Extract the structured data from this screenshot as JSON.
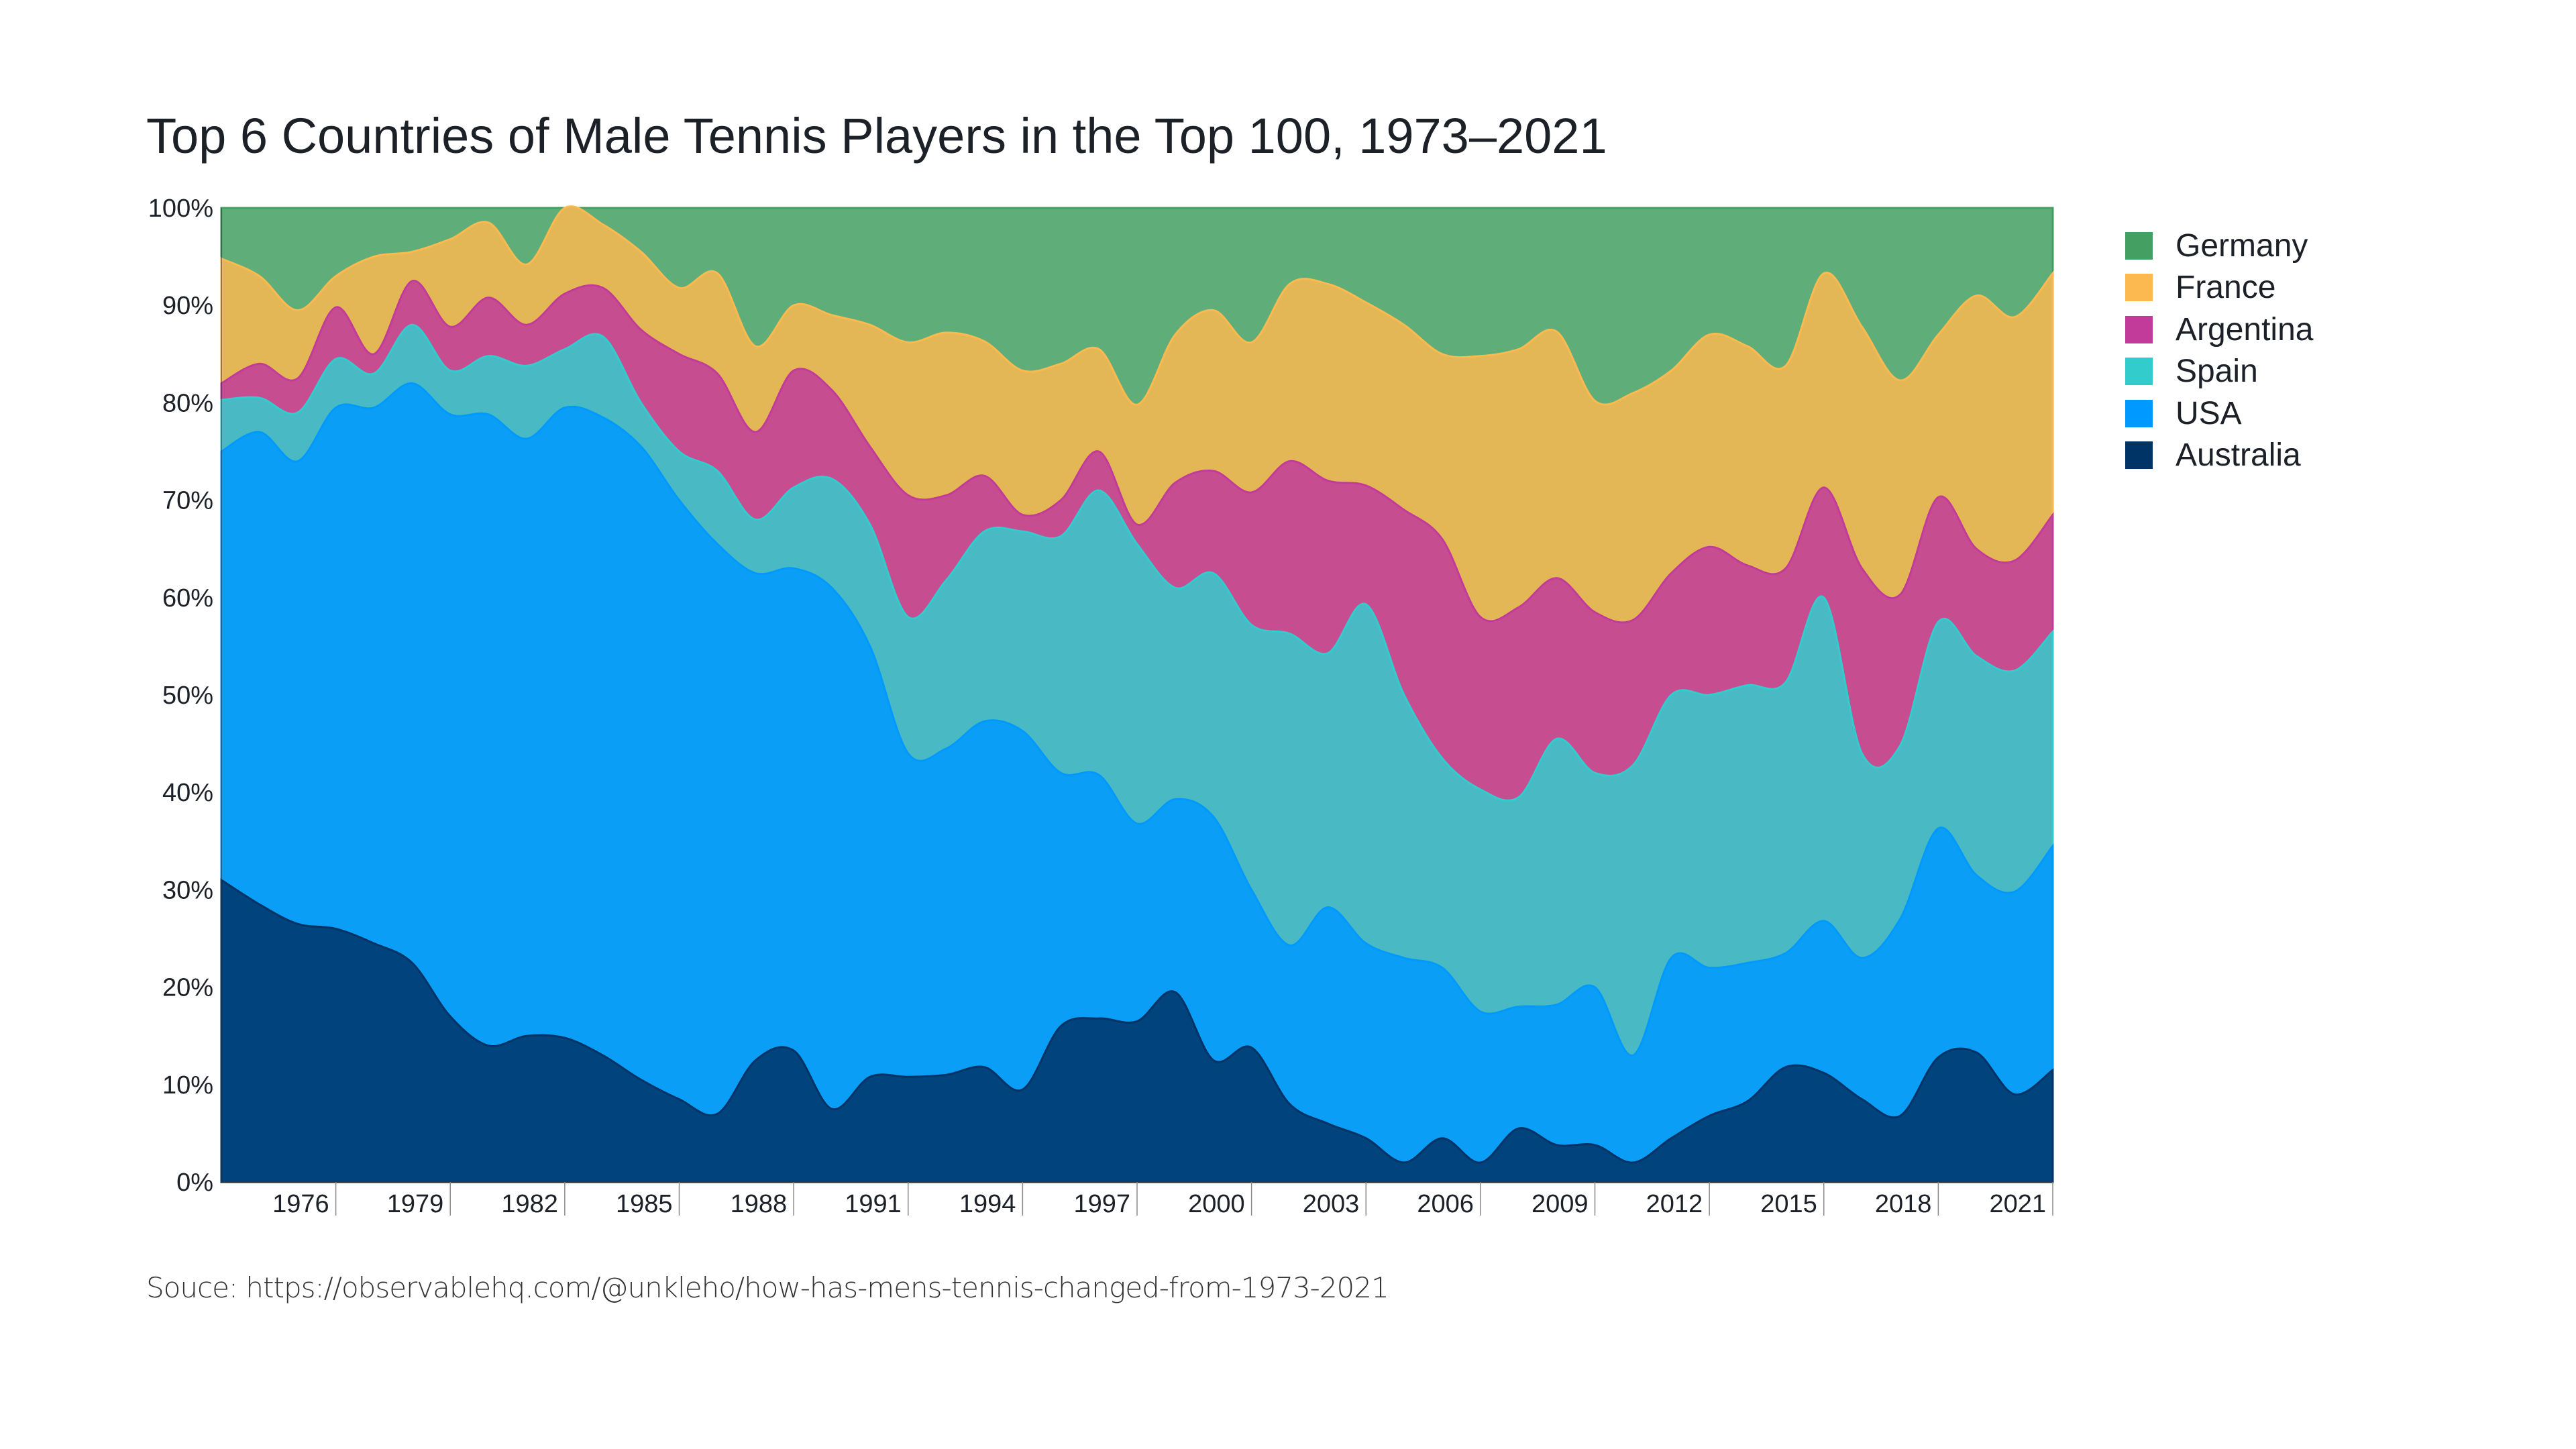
{
  "chart_data": {
    "type": "area",
    "stacked": true,
    "normalized": true,
    "title": "Top 6 Countries of Male Tennis Players in the Top 100, 1973–2021",
    "source": "Souce: https://observablehq.com/@unkleho/how-has-mens-tennis-changed-from-1973-2021",
    "xlabel": "",
    "ylabel": "",
    "ylim": [
      0,
      100
    ],
    "y_ticks": [
      "0%",
      "10%",
      "20%",
      "30%",
      "40%",
      "50%",
      "60%",
      "70%",
      "80%",
      "90%",
      "100%"
    ],
    "x_ticks": [
      "1976",
      "1979",
      "1982",
      "1985",
      "1988",
      "1991",
      "1994",
      "1997",
      "2000",
      "2003",
      "2006",
      "2009",
      "2012",
      "2015",
      "2018",
      "2021"
    ],
    "legend_position": "right",
    "grid": false,
    "x": [
      1973,
      1974,
      1975,
      1976,
      1977,
      1978,
      1979,
      1980,
      1981,
      1982,
      1983,
      1984,
      1985,
      1986,
      1987,
      1988,
      1989,
      1990,
      1991,
      1992,
      1993,
      1994,
      1995,
      1996,
      1997,
      1998,
      1999,
      2000,
      2001,
      2002,
      2003,
      2004,
      2005,
      2006,
      2007,
      2008,
      2009,
      2010,
      2011,
      2012,
      2013,
      2014,
      2015,
      2016,
      2017,
      2018,
      2019,
      2020,
      2021
    ],
    "series": [
      {
        "name": "Australia",
        "color": "#003366",
        "values": [
          31,
          28.5,
          26.5,
          26,
          24.5,
          22.5,
          17,
          14,
          15,
          14.8,
          13,
          10.5,
          8.5,
          7,
          12.5,
          13.5,
          7.5,
          10.8,
          10.8,
          11,
          11.8,
          9.5,
          16,
          16.8,
          16.5,
          19.5,
          12.5,
          13.8,
          8,
          6,
          4.5,
          2,
          4.5,
          2,
          5.5,
          3.8,
          3.8,
          2,
          4.5,
          6.8,
          8.3,
          11.8,
          11.2,
          8.5,
          6.8,
          12.8,
          13.3,
          9,
          11.5
        ]
      },
      {
        "name": "USA",
        "color": "#0099ff",
        "values": [
          44,
          48.5,
          47.5,
          53.5,
          55,
          59.5,
          61.8,
          64.8,
          61.3,
          64.7,
          65.5,
          65,
          61.5,
          58.5,
          50,
          49.5,
          53.5,
          44.2,
          33.2,
          33.5,
          35.5,
          36.8,
          26,
          25,
          20.3,
          19.8,
          25,
          16.2,
          16.3,
          22.2,
          20,
          21,
          17.5,
          15.5,
          12.5,
          14.4,
          16.2,
          11,
          18.5,
          15.2,
          14.2,
          11.7,
          15.6,
          14.5,
          20.2,
          23.5,
          18.2,
          20.8,
          23
        ]
      },
      {
        "name": "Spain",
        "color": "#33cccc",
        "values": [
          5.3,
          3.5,
          5,
          5,
          3.5,
          6,
          4.5,
          6,
          7.5,
          6,
          8.3,
          4.5,
          5,
          7.5,
          5.5,
          8.3,
          11.2,
          12.5,
          14,
          17.3,
          19.5,
          20.5,
          24.3,
          29.2,
          28.7,
          21.7,
          25,
          27.2,
          32,
          26.1,
          34.8,
          27,
          21.5,
          22.8,
          21.5,
          27.3,
          22,
          29.8,
          27,
          28,
          28.5,
          27.8,
          33.2,
          21,
          17.8,
          21.2,
          22.5,
          22.7,
          22
        ]
      },
      {
        "name": "Argentina",
        "color": "#c23b9b",
        "values": [
          1.7,
          3.5,
          3.5,
          5.3,
          2,
          4.5,
          4.5,
          6,
          4.2,
          5.7,
          5,
          7.5,
          10,
          10,
          9,
          12,
          9.1,
          8,
          12.5,
          8.7,
          5.7,
          1.7,
          3.7,
          4,
          2,
          10.8,
          10.5,
          13.6,
          17.7,
          17.7,
          12.2,
          19,
          22.5,
          17.7,
          19.5,
          16.5,
          16.5,
          14.9,
          12.5,
          15.2,
          12.3,
          11.7,
          11.3,
          19,
          15.5,
          12.8,
          11,
          11.3,
          12
        ]
      },
      {
        "name": "France",
        "color": "#fbb950",
        "values": [
          12.8,
          9,
          7,
          3.2,
          10,
          3,
          9,
          7.7,
          6.2,
          8.8,
          6.5,
          8,
          6.8,
          10.3,
          8.8,
          6.7,
          7.7,
          12.5,
          15.7,
          16.7,
          13.8,
          14.8,
          14,
          10.5,
          12.3,
          15.2,
          16.5,
          15.4,
          18.2,
          20.2,
          18.8,
          19,
          19,
          26.8,
          26.5,
          25.3,
          21.7,
          23.3,
          20.8,
          21.8,
          22.5,
          20.8,
          22,
          24.8,
          22,
          16.7,
          26,
          25,
          24.8
        ]
      },
      {
        "name": "Germany",
        "color": "#43a062",
        "values": [
          5.2,
          7,
          10.5,
          7,
          5,
          4.5,
          3.2,
          1.5,
          5.8,
          0,
          1.7,
          4.5,
          8.2,
          6.7,
          14.2,
          10,
          11,
          12,
          13.8,
          12.8,
          13.7,
          16.7,
          16,
          14.5,
          20.2,
          13,
          10.5,
          13.8,
          7.8,
          7.8,
          9.7,
          12,
          15,
          15.2,
          14.5,
          12.7,
          19.8,
          19,
          16.7,
          13,
          14.2,
          16.2,
          6.7,
          12.2,
          17.7,
          13,
          9,
          11.2,
          6.7
        ]
      }
    ]
  }
}
